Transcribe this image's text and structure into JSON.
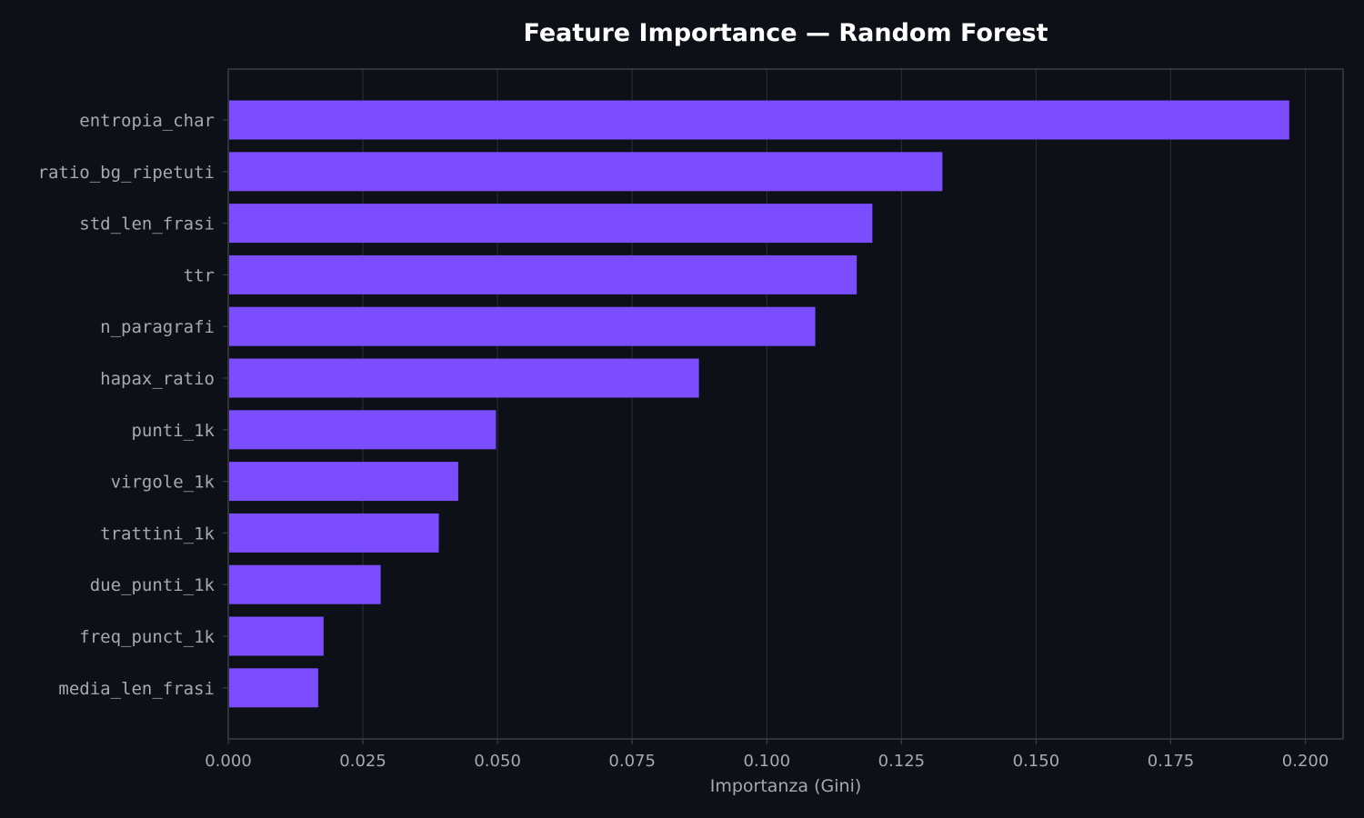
{
  "chart_data": {
    "type": "bar",
    "orientation": "horizontal",
    "title": "Feature Importance — Random Forest",
    "xlabel": "Importanza (Gini)",
    "ylabel": "",
    "xlim": [
      0,
      0.207
    ],
    "xticks": [
      "0.000",
      "0.025",
      "0.050",
      "0.075",
      "0.100",
      "0.125",
      "0.150",
      "0.175",
      "0.200"
    ],
    "grid": "vertical",
    "categories": [
      "entropia_char",
      "ratio_bg_ripetuti",
      "std_len_frasi",
      "ttr",
      "n_paragrafi",
      "hapax_ratio",
      "punti_1k",
      "virgole_1k",
      "trattini_1k",
      "due_punti_1k",
      "freq_punct_1k",
      "media_len_frasi"
    ],
    "values": [
      0.197,
      0.1326,
      0.1196,
      0.1167,
      0.109,
      0.0874,
      0.0497,
      0.0427,
      0.0391,
      0.0283,
      0.0177,
      0.0167
    ]
  },
  "colors": {
    "background": "#0d1017",
    "bar": "#7c4dff",
    "grid": "#262a33",
    "spine": "#3a3d45",
    "text": "#a7a9b0",
    "title": "#ffffff"
  }
}
